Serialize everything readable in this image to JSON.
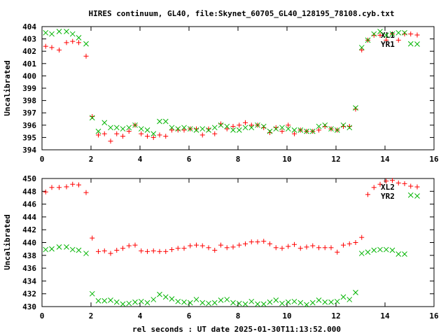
{
  "title": "HIRES continuum, GL40, file:Skynet_60705_GL40_128195_78108.cyb.txt",
  "xlabel": "rel seconds : UT date 2025-01-30T11:13:52.000",
  "colors": {
    "series1": "#ff0000",
    "series2": "#00b400",
    "frame": "#000000"
  },
  "chart_data": [
    {
      "type": "scatter",
      "ylabel": "Uncalibrated",
      "xlim": [
        0,
        16
      ],
      "ylim": [
        394,
        404
      ],
      "xticks": [
        0,
        2,
        4,
        6,
        8,
        10,
        12,
        14,
        16
      ],
      "yticks": [
        394,
        395,
        396,
        397,
        398,
        399,
        400,
        401,
        402,
        403,
        404
      ],
      "legend_position": "top-right",
      "series": [
        {
          "name": "XL1",
          "marker": "plus",
          "color": "#ff0000",
          "x": [
            0.15,
            0.4,
            0.7,
            1.0,
            1.25,
            1.5,
            1.8,
            2.05,
            2.3,
            2.55,
            2.8,
            3.05,
            3.3,
            3.55,
            3.8,
            4.05,
            4.3,
            4.55,
            4.8,
            5.05,
            5.3,
            5.55,
            5.8,
            6.05,
            6.3,
            6.55,
            6.8,
            7.05,
            7.3,
            7.55,
            7.8,
            8.05,
            8.3,
            8.55,
            8.8,
            9.05,
            9.3,
            9.55,
            9.8,
            10.05,
            10.3,
            10.55,
            10.8,
            11.05,
            11.3,
            11.55,
            11.8,
            12.05,
            12.3,
            12.55,
            12.8,
            13.05,
            13.3,
            13.55,
            13.8,
            14.05,
            14.3,
            14.55,
            14.8,
            15.05
          ],
          "y": [
            402.4,
            402.3,
            402.1,
            402.7,
            402.8,
            402.7,
            401.6,
            396.7,
            395.2,
            395.3,
            394.7,
            395.3,
            395.1,
            395.5,
            396.0,
            395.3,
            395.1,
            395.0,
            395.2,
            395.1,
            395.6,
            395.6,
            395.6,
            395.7,
            395.7,
            395.2,
            395.7,
            395.3,
            396.1,
            395.7,
            395.9,
            396.0,
            396.2,
            396.0,
            396.0,
            395.8,
            395.4,
            395.8,
            395.5,
            396.0,
            395.3,
            395.6,
            395.5,
            395.5,
            395.6,
            395.9,
            395.7,
            395.6,
            395.9,
            395.9,
            397.3,
            402.1,
            402.9,
            403.3,
            403.3,
            402.9,
            403.4,
            402.9,
            403.4,
            403.4
          ]
        },
        {
          "name": "YR1",
          "marker": "cross",
          "color": "#00b400",
          "x": [
            0.15,
            0.4,
            0.7,
            1.0,
            1.25,
            1.5,
            1.8,
            2.05,
            2.3,
            2.55,
            2.8,
            3.05,
            3.3,
            3.55,
            3.8,
            4.05,
            4.3,
            4.55,
            4.8,
            5.05,
            5.3,
            5.55,
            5.8,
            6.05,
            6.3,
            6.55,
            6.8,
            7.05,
            7.3,
            7.55,
            7.8,
            8.05,
            8.3,
            8.55,
            8.8,
            9.05,
            9.3,
            9.55,
            9.8,
            10.05,
            10.3,
            10.55,
            10.8,
            11.05,
            11.3,
            11.55,
            11.8,
            12.05,
            12.3,
            12.55,
            12.8,
            13.05,
            13.3,
            13.55,
            13.8,
            14.05,
            14.3,
            14.55,
            14.8,
            15.05
          ],
          "y": [
            403.5,
            403.4,
            403.6,
            403.6,
            403.4,
            403.1,
            402.6,
            396.6,
            395.5,
            396.2,
            395.8,
            395.8,
            395.7,
            395.8,
            396.0,
            395.7,
            395.6,
            395.3,
            396.3,
            396.3,
            395.8,
            395.7,
            395.8,
            395.7,
            395.6,
            395.7,
            395.6,
            395.8,
            396.0,
            395.9,
            395.6,
            395.6,
            395.8,
            395.8,
            396.0,
            395.9,
            395.5,
            395.7,
            395.8,
            395.7,
            395.6,
            395.6,
            395.5,
            395.5,
            395.9,
            396.0,
            395.7,
            395.6,
            396.0,
            395.8,
            397.4,
            402.3,
            402.9,
            403.4,
            403.6,
            403.3,
            403.4,
            403.5,
            403.5,
            402.6
          ]
        }
      ]
    },
    {
      "type": "scatter",
      "ylabel": "Uncalibrated",
      "xlim": [
        0,
        16
      ],
      "ylim": [
        430,
        450
      ],
      "xticks": [
        0,
        2,
        4,
        6,
        8,
        10,
        12,
        14,
        16
      ],
      "yticks": [
        430,
        432,
        434,
        436,
        438,
        440,
        442,
        444,
        446,
        448,
        450
      ],
      "legend_position": "top-right",
      "series": [
        {
          "name": "XL2",
          "marker": "plus",
          "color": "#ff0000",
          "x": [
            0.15,
            0.4,
            0.7,
            1.0,
            1.25,
            1.5,
            1.8,
            2.05,
            2.3,
            2.55,
            2.8,
            3.05,
            3.3,
            3.55,
            3.8,
            4.05,
            4.3,
            4.55,
            4.8,
            5.05,
            5.3,
            5.55,
            5.8,
            6.05,
            6.3,
            6.55,
            6.8,
            7.05,
            7.3,
            7.55,
            7.8,
            8.05,
            8.3,
            8.55,
            8.8,
            9.05,
            9.3,
            9.55,
            9.8,
            10.05,
            10.3,
            10.55,
            10.8,
            11.05,
            11.3,
            11.55,
            11.8,
            12.05,
            12.3,
            12.55,
            12.8,
            13.05,
            13.3,
            13.55,
            13.8,
            14.05,
            14.3,
            14.55,
            14.8,
            15.05
          ],
          "y": [
            447.9,
            448.6,
            448.6,
            448.7,
            449.1,
            449.0,
            447.8,
            440.7,
            438.6,
            438.7,
            438.3,
            438.8,
            439.1,
            439.5,
            439.6,
            438.7,
            438.6,
            438.7,
            438.6,
            438.6,
            438.9,
            439.1,
            439.1,
            439.5,
            439.6,
            439.5,
            439.2,
            438.8,
            439.6,
            439.2,
            439.3,
            439.6,
            439.8,
            440.1,
            440.1,
            440.2,
            439.8,
            439.2,
            439.1,
            439.4,
            439.7,
            439.1,
            439.3,
            439.5,
            439.2,
            439.2,
            439.2,
            438.5,
            439.6,
            439.8,
            440.0,
            440.8,
            447.5,
            448.6,
            449.1,
            449.6,
            449.7,
            449.3,
            449.2,
            448.8
          ]
        },
        {
          "name": "YR2",
          "marker": "cross",
          "color": "#00b400",
          "x": [
            0.15,
            0.4,
            0.7,
            1.0,
            1.25,
            1.5,
            1.8,
            2.05,
            2.3,
            2.55,
            2.8,
            3.05,
            3.3,
            3.55,
            3.8,
            4.05,
            4.3,
            4.55,
            4.8,
            5.05,
            5.3,
            5.55,
            5.8,
            6.05,
            6.3,
            6.55,
            6.8,
            7.05,
            7.3,
            7.55,
            7.8,
            8.05,
            8.3,
            8.55,
            8.8,
            9.05,
            9.3,
            9.55,
            9.8,
            10.05,
            10.3,
            10.55,
            10.8,
            11.05,
            11.3,
            11.55,
            11.8,
            12.05,
            12.3,
            12.55,
            12.8,
            13.05,
            13.3,
            13.55,
            13.8,
            14.05,
            14.3,
            14.55,
            14.8,
            15.05
          ],
          "y": [
            438.9,
            439.0,
            439.3,
            439.3,
            438.9,
            438.8,
            438.3,
            432.0,
            430.9,
            430.9,
            431.0,
            430.7,
            430.4,
            430.5,
            430.7,
            430.8,
            430.6,
            431.1,
            431.9,
            431.5,
            431.2,
            430.8,
            430.7,
            430.6,
            431.1,
            430.6,
            430.5,
            430.6,
            431.0,
            431.1,
            430.6,
            430.5,
            430.4,
            430.8,
            430.4,
            430.4,
            430.7,
            431.0,
            430.5,
            430.7,
            430.8,
            430.6,
            430.3,
            430.6,
            431.0,
            430.7,
            430.7,
            430.8,
            431.5,
            431.1,
            432.2,
            438.3,
            438.5,
            438.8,
            438.9,
            438.9,
            438.8,
            438.2,
            438.2,
            447.4
          ]
        }
      ]
    }
  ]
}
